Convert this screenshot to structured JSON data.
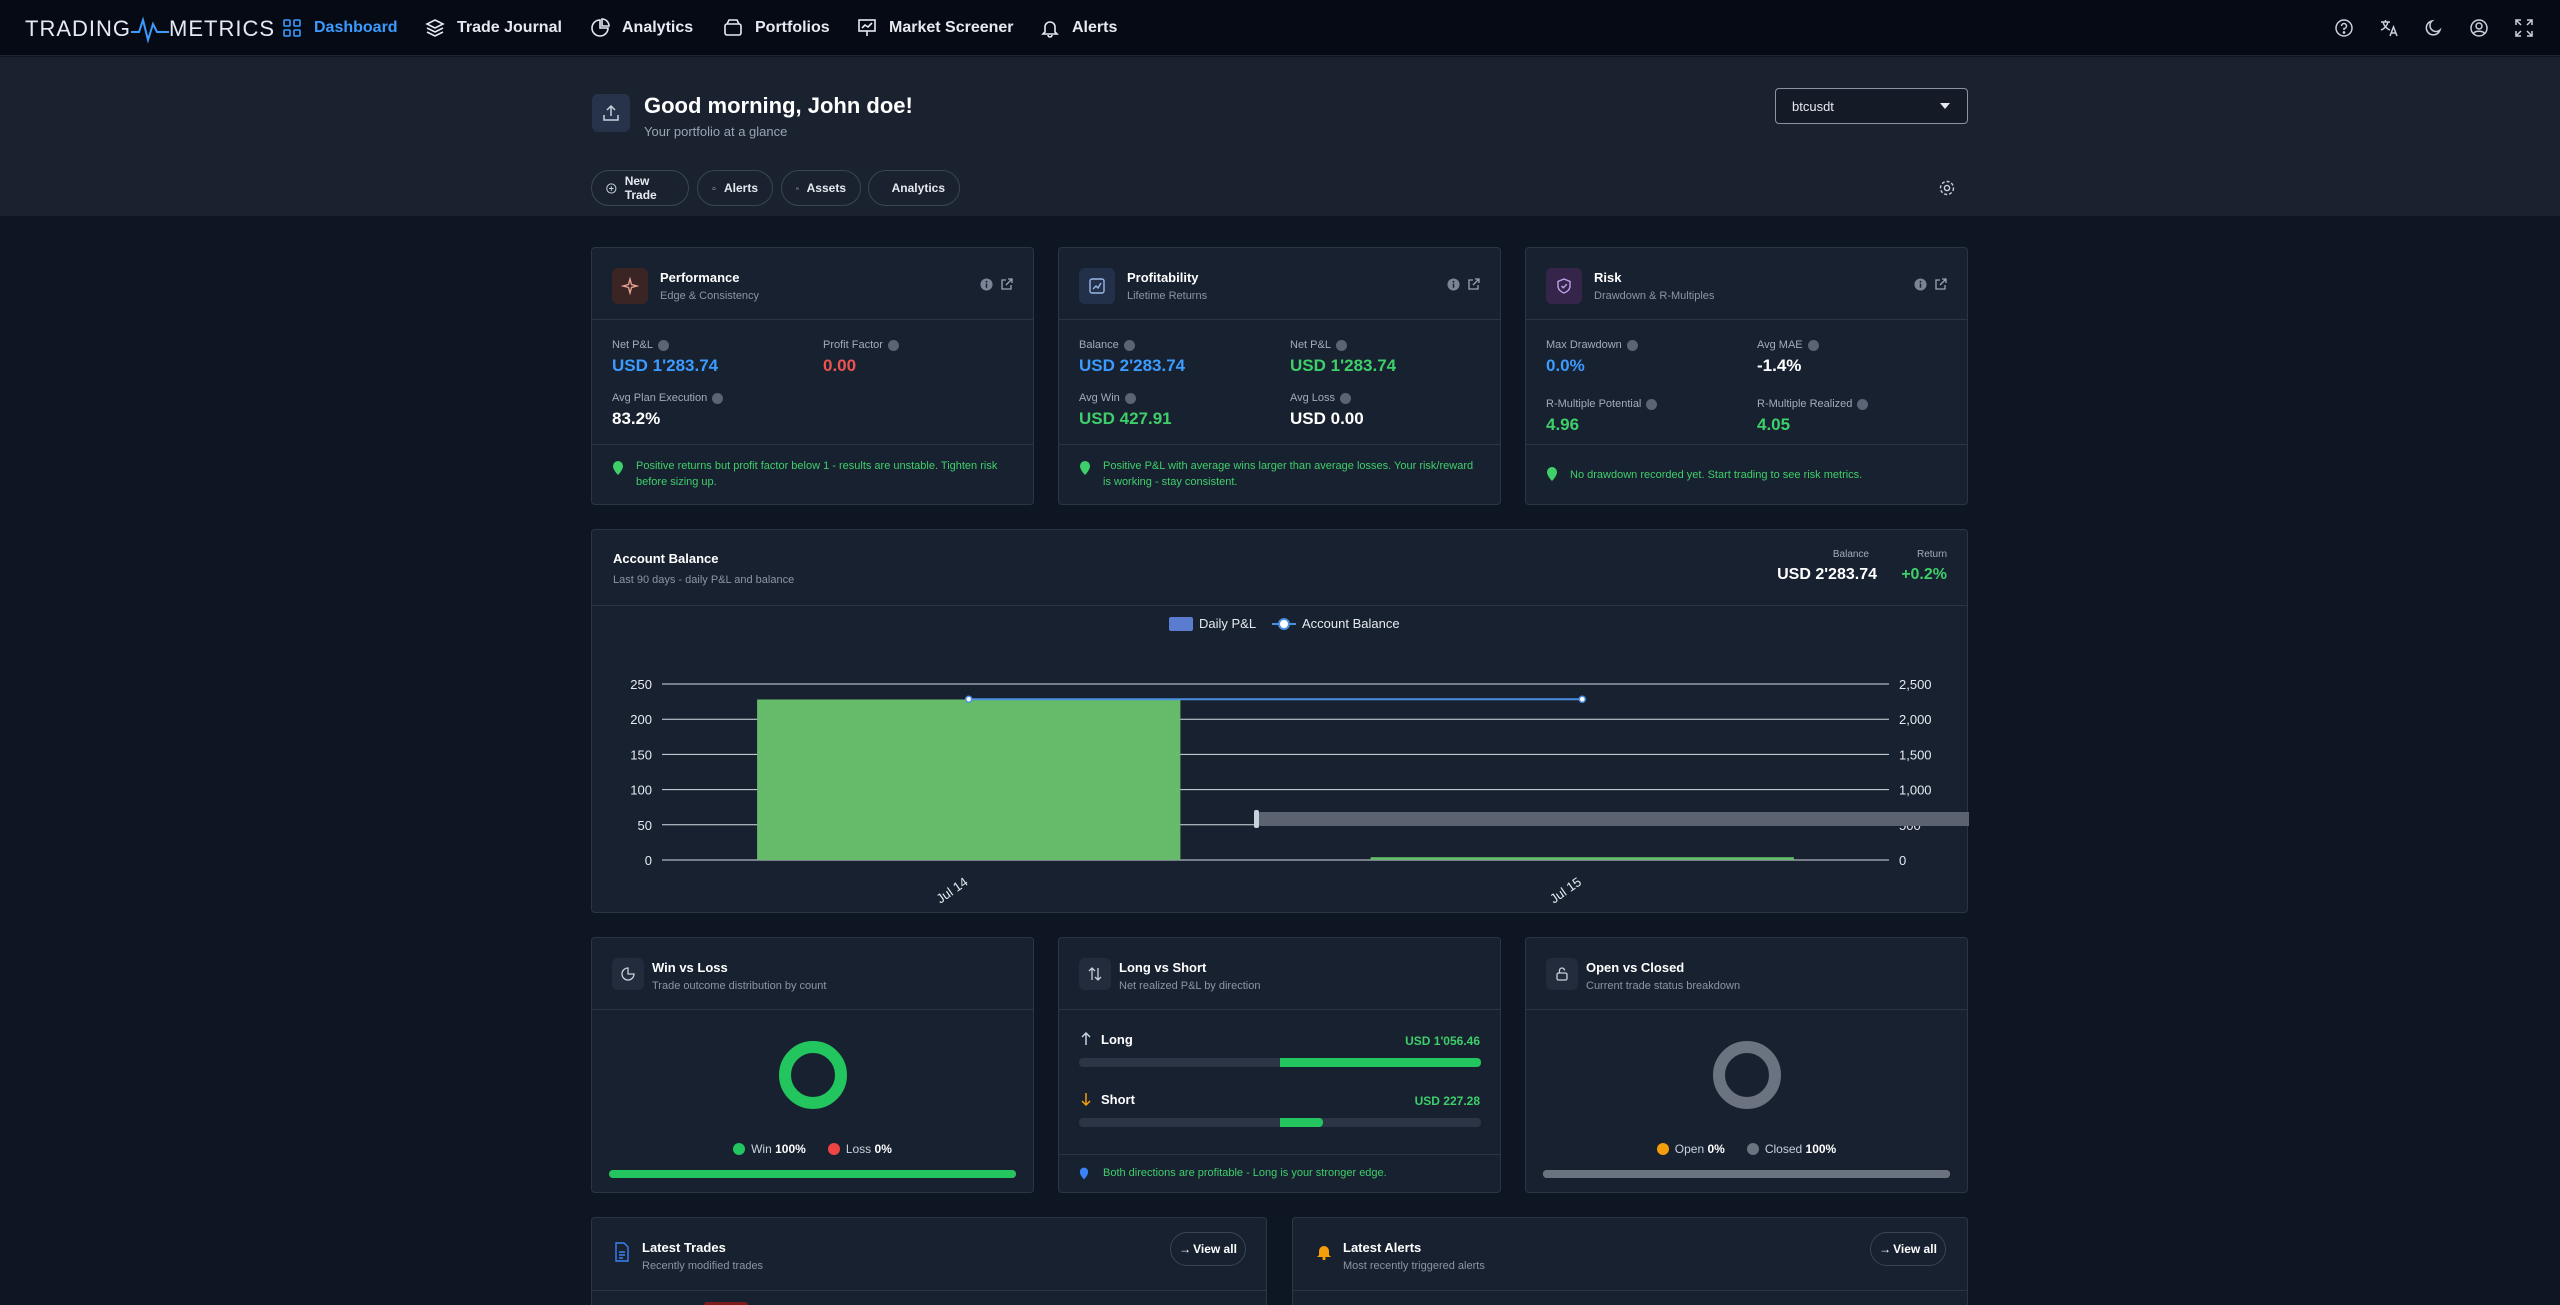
{
  "nav": {
    "logo_left": "TRADING",
    "logo_right": "METRICS",
    "items": [
      {
        "label": "Dashboard",
        "icon": "grid-icon",
        "active": true
      },
      {
        "label": "Trade Journal",
        "icon": "layers-icon"
      },
      {
        "label": "Analytics",
        "icon": "pie-chart-icon"
      },
      {
        "label": "Portfolios",
        "icon": "wallet-icon"
      },
      {
        "label": "Market Screener",
        "icon": "presentation-chart-icon"
      },
      {
        "label": "Alerts",
        "icon": "bell-icon"
      }
    ],
    "right_icons": [
      "help-icon",
      "translate-icon",
      "moon-icon",
      "user-icon",
      "fullscreen-icon"
    ]
  },
  "hero": {
    "greeting": "Good morning, John doe!",
    "subtitle": "Your portfolio at a glance",
    "symbol_select": "btcusdt",
    "buttons": [
      "New Trade",
      "Alerts",
      "Assets",
      "Analytics"
    ]
  },
  "performance": {
    "title": "Performance",
    "subtitle": "Edge & Consistency",
    "metrics": [
      {
        "label": "Net P&L",
        "value": "USD 1'283.74"
      },
      {
        "label": "Profit Factor",
        "value": "0.00"
      },
      {
        "label": "Avg Plan Execution",
        "value": "83.2%"
      }
    ],
    "note": "Positive returns but profit factor below 1 - results are unstable. Tighten risk before sizing up."
  },
  "profitability": {
    "title": "Profitability",
    "subtitle": "Lifetime Returns",
    "metrics": [
      {
        "label": "Balance",
        "value": "USD 2'283.74"
      },
      {
        "label": "Net P&L",
        "value": "USD 1'283.74"
      },
      {
        "label": "Avg Win",
        "value": "USD 427.91"
      },
      {
        "label": "Avg Loss",
        "value": "USD 0.00"
      }
    ],
    "note": "Positive P&L with average wins larger than average losses. Your risk/reward is working - stay consistent."
  },
  "risk": {
    "title": "Risk",
    "subtitle": "Drawdown & R-Multiples",
    "metrics": [
      {
        "label": "Max Drawdown",
        "value": "0.0%"
      },
      {
        "label": "Avg MAE",
        "value": "-1.4%"
      },
      {
        "label": "R-Multiple Potential",
        "value": "4.96"
      },
      {
        "label": "R-Multiple Realized",
        "value": "4.05"
      }
    ],
    "note": "No drawdown recorded yet. Start trading to see risk metrics."
  },
  "balance_card": {
    "title": "Account Balance",
    "subtitle": "Last 90 days - daily P&L and balance",
    "balance_label": "Balance",
    "balance_value": "USD 2'283.74",
    "return_label": "Return",
    "return_value": "+0.2%"
  },
  "chart_data": {
    "type": "bar",
    "categories": [
      "Jul 14",
      "Jul 15"
    ],
    "series": [
      {
        "name": "Daily P&L",
        "type": "bar",
        "axis": "left",
        "values": [
          228,
          4
        ],
        "color": "#66bb6a"
      },
      {
        "name": "Account Balance",
        "type": "line",
        "axis": "right",
        "values": [
          2283.74,
          2283.74
        ],
        "color": "#4a90e2"
      }
    ],
    "y_left_ticks": [
      0,
      50,
      100,
      150,
      200,
      250
    ],
    "y_right_ticks": [
      "0",
      "500",
      "1,000",
      "1,500",
      "2,000",
      "2,500"
    ],
    "ylim_left": [
      0,
      250
    ],
    "ylim_right": [
      0,
      2500
    ],
    "legend": "top-center",
    "grid": true
  },
  "winloss": {
    "title": "Win vs Loss",
    "subtitle": "Trade outcome distribution by count",
    "win_label": "Win",
    "win_value": "100%",
    "loss_label": "Loss",
    "loss_value": "0%",
    "win_fraction": 1.0
  },
  "longshort": {
    "title": "Long vs Short",
    "subtitle": "Net realized P&L by direction",
    "long_label": "Long",
    "long_value": "USD 1'056.46",
    "long_fraction": 1.0,
    "short_label": "Short",
    "short_value": "USD 227.28",
    "short_fraction": 0.215,
    "note": "Both directions are profitable - Long is your stronger edge."
  },
  "openclosed": {
    "title": "Open vs Closed",
    "subtitle": "Current trade status breakdown",
    "open_label": "Open",
    "open_value": "0%",
    "closed_label": "Closed",
    "closed_value": "100%",
    "closed_fraction": 1.0
  },
  "latest_trades": {
    "title": "Latest Trades",
    "subtitle": "Recently modified trades",
    "button": "View all"
  },
  "latest_alerts": {
    "title": "Latest Alerts",
    "subtitle": "Most recently triggered alerts",
    "button": "View all"
  },
  "colors": {
    "accent": "#3b9bff",
    "positive": "#3ecf6a",
    "negative": "#ef5350",
    "neutral": "#6b7280"
  }
}
